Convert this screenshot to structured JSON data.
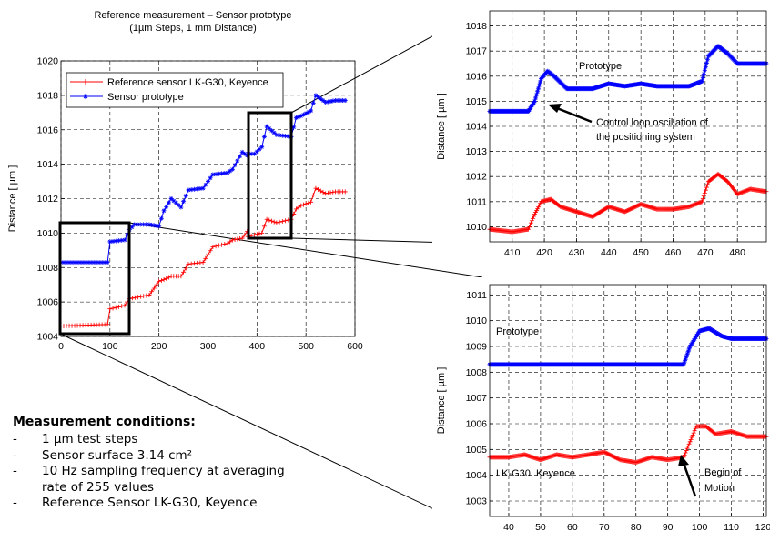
{
  "chart_data": [
    {
      "type": "line",
      "title": "Reference measurement – Sensor prototype",
      "subtitle": "(1µm Steps, 1 mm Distance)",
      "ylabel": "Distance [ µm ]",
      "xlabel": "",
      "xlim": [
        0,
        600
      ],
      "ylim": [
        1004,
        1020
      ],
      "xticks": [
        0,
        100,
        200,
        300,
        400,
        500,
        600
      ],
      "yticks": [
        1004,
        1006,
        1008,
        1010,
        1012,
        1014,
        1016,
        1018,
        1020
      ],
      "grid": true,
      "legend": "top-left",
      "series": [
        {
          "name": "Reference sensor LK-G30, Keyence",
          "color": "#ff0000",
          "marker": "+",
          "x": [
            0,
            95,
            100,
            130,
            140,
            180,
            200,
            210,
            225,
            245,
            260,
            290,
            310,
            340,
            350,
            370,
            380,
            382,
            395,
            410,
            420,
            440,
            470,
            480,
            490,
            510,
            520,
            540,
            560,
            580
          ],
          "y": [
            1004.6,
            1004.7,
            1005.6,
            1005.8,
            1006.2,
            1006.4,
            1007.2,
            1007.3,
            1007.5,
            1007.5,
            1008.2,
            1008.3,
            1009.2,
            1009.4,
            1009.6,
            1009.7,
            1010.1,
            1009.8,
            1009.9,
            1010.0,
            1010.8,
            1010.6,
            1010.8,
            1011.4,
            1011.6,
            1011.8,
            1012.6,
            1012.3,
            1012.4,
            1012.4
          ]
        },
        {
          "name": "Sensor prototype",
          "color": "#0000ff",
          "marker": "*",
          "x": [
            0,
            95,
            100,
            130,
            140,
            150,
            180,
            200,
            210,
            225,
            245,
            260,
            290,
            310,
            340,
            350,
            370,
            380,
            382,
            395,
            410,
            420,
            440,
            470,
            480,
            490,
            510,
            520,
            540,
            560,
            580
          ],
          "y": [
            1008.3,
            1008.3,
            1009.5,
            1009.6,
            1010.2,
            1010.5,
            1010.5,
            1010.4,
            1011.3,
            1012.0,
            1011.5,
            1012.5,
            1012.6,
            1013.4,
            1013.5,
            1013.7,
            1014.7,
            1014.5,
            1014.6,
            1014.6,
            1015.0,
            1016.2,
            1015.7,
            1015.6,
            1016.7,
            1016.8,
            1017.1,
            1018.0,
            1017.6,
            1017.7,
            1017.7
          ]
        }
      ]
    },
    {
      "type": "line",
      "title": "",
      "ylabel": "Distance [ µm ]",
      "xlabel": "",
      "xlim": [
        403,
        489
      ],
      "ylim": [
        1009.4,
        1018.6
      ],
      "xticks": [
        410,
        420,
        430,
        440,
        450,
        460,
        470,
        480
      ],
      "yticks": [
        1010,
        1011,
        1012,
        1013,
        1014,
        1015,
        1016,
        1017,
        1018
      ],
      "grid": true,
      "annotations": [
        "Prototype",
        "Control loop oscillation of",
        "the positioning system"
      ],
      "series": [
        {
          "color": "#ff0000",
          "marker": "+",
          "x": [
            403,
            410,
            415,
            417,
            419,
            422,
            425,
            430,
            435,
            440,
            445,
            450,
            455,
            460,
            465,
            469,
            471,
            474,
            477,
            480,
            484,
            489
          ],
          "y": [
            1009.9,
            1009.8,
            1009.9,
            1010.5,
            1011.0,
            1011.1,
            1010.8,
            1010.6,
            1010.4,
            1010.8,
            1010.6,
            1010.9,
            1010.7,
            1010.7,
            1010.8,
            1011.0,
            1011.8,
            1012.1,
            1011.8,
            1011.3,
            1011.5,
            1011.4
          ]
        },
        {
          "color": "#0000ff",
          "marker": "*",
          "x": [
            403,
            410,
            415,
            417,
            419,
            421,
            423,
            427,
            430,
            435,
            440,
            445,
            450,
            455,
            460,
            465,
            469,
            471,
            474,
            477,
            480,
            484,
            489
          ],
          "y": [
            1014.6,
            1014.6,
            1014.6,
            1015.0,
            1015.9,
            1016.2,
            1016.0,
            1015.5,
            1015.5,
            1015.5,
            1015.7,
            1015.6,
            1015.7,
            1015.6,
            1015.6,
            1015.6,
            1015.8,
            1016.8,
            1017.2,
            1016.9,
            1016.5,
            1016.5,
            1016.5
          ]
        }
      ]
    },
    {
      "type": "line",
      "title": "",
      "ylabel": "Distance [ µm ]",
      "xlabel": "",
      "xlim": [
        34,
        121
      ],
      "ylim": [
        1002.4,
        1011.4
      ],
      "xticks": [
        40,
        50,
        60,
        70,
        80,
        90,
        100,
        110,
        120
      ],
      "yticks": [
        1003,
        1004,
        1005,
        1006,
        1007,
        1008,
        1009,
        1010,
        1011
      ],
      "grid": true,
      "annotations": [
        "Prototype",
        "LK-G30, Keyence",
        "Begin of",
        "Motion"
      ],
      "series": [
        {
          "color": "#ff0000",
          "marker": "+",
          "x": [
            34,
            40,
            45,
            50,
            55,
            60,
            65,
            70,
            75,
            80,
            85,
            90,
            95,
            97,
            99,
            102,
            105,
            110,
            115,
            121
          ],
          "y": [
            1004.7,
            1004.7,
            1004.8,
            1004.6,
            1004.8,
            1004.7,
            1004.8,
            1004.9,
            1004.6,
            1004.5,
            1004.7,
            1004.6,
            1004.7,
            1005.3,
            1005.9,
            1005.9,
            1005.6,
            1005.7,
            1005.5,
            1005.5
          ]
        },
        {
          "color": "#0000ff",
          "marker": "*",
          "x": [
            34,
            40,
            50,
            60,
            70,
            80,
            90,
            95,
            97,
            100,
            103,
            107,
            110,
            115,
            121
          ],
          "y": [
            1008.3,
            1008.3,
            1008.3,
            1008.3,
            1008.3,
            1008.3,
            1008.3,
            1008.3,
            1009.0,
            1009.6,
            1009.7,
            1009.4,
            1009.3,
            1009.3,
            1009.3
          ]
        }
      ]
    }
  ],
  "conditions": {
    "title": "Measurement conditions:",
    "items": [
      "1 µm test steps",
      "Sensor surface 3.14 cm²",
      "10 Hz sampling frequency at averaging rate of 255 values",
      "Reference Sensor LK-G30, Keyence"
    ]
  }
}
